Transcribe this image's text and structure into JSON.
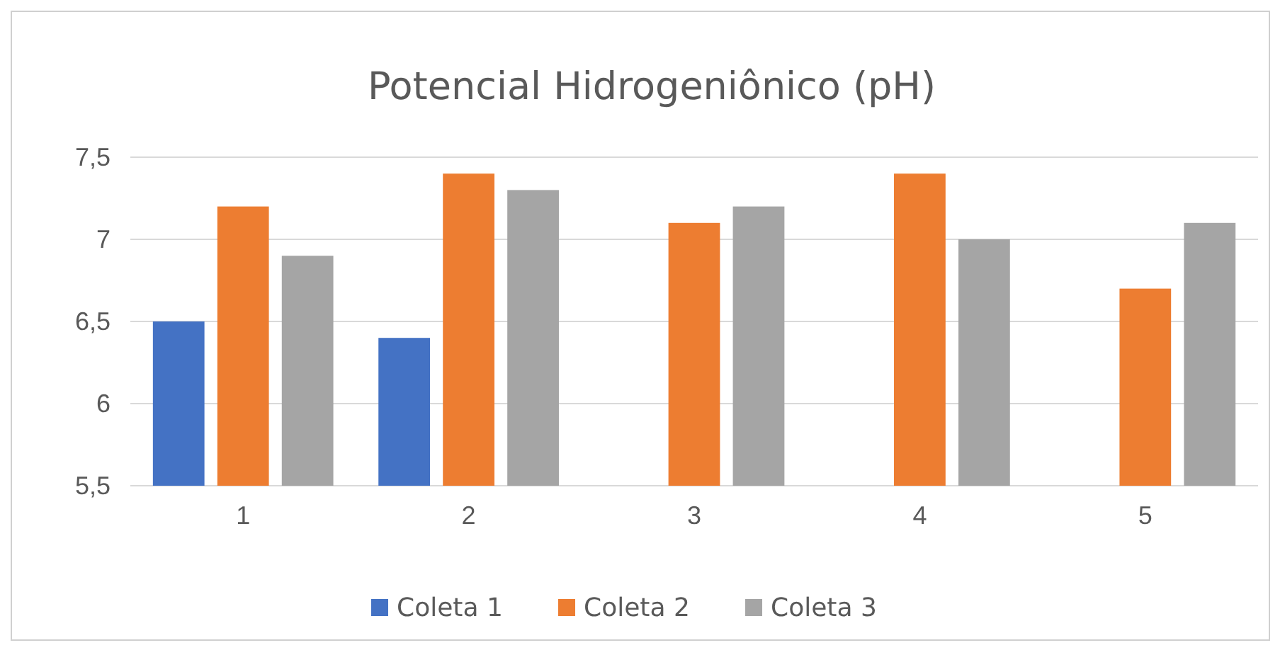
{
  "chart_data": {
    "type": "bar",
    "title": "Potencial Hidrogeniônico (pH)",
    "categories": [
      "1",
      "2",
      "3",
      "4",
      "5"
    ],
    "series": [
      {
        "name": "Coleta 1",
        "color": "#4472c4",
        "values": [
          6.5,
          6.4,
          null,
          null,
          null
        ]
      },
      {
        "name": "Coleta 2",
        "color": "#ed7d31",
        "values": [
          7.2,
          7.4,
          7.1,
          7.4,
          6.7
        ]
      },
      {
        "name": "Coleta 3",
        "color": "#a5a5a5",
        "values": [
          6.9,
          7.3,
          7.2,
          7.0,
          7.1
        ]
      }
    ],
    "ylim": [
      5.5,
      7.5
    ],
    "yticks": [
      {
        "value": 5.5,
        "label": "5,5"
      },
      6,
      {
        "value": 6.5,
        "label": "6,5"
      },
      7,
      {
        "value": 7.5,
        "label": "7,5"
      }
    ],
    "grid": "y",
    "legend": "bottom"
  }
}
